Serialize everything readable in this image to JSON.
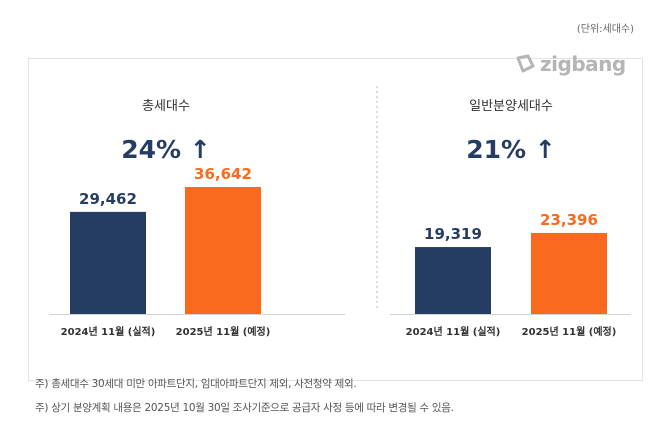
{
  "unit_label": "(단위:세대수)",
  "logo_text": "zigbang",
  "colors": {
    "actual": "#263d63",
    "planned": "#fa6a1e",
    "axis": "#d0d0d0",
    "text_dark": "#263d63"
  },
  "chart_data": [
    {
      "type": "bar",
      "title": "총세대수",
      "change_label": "24% ↑",
      "categories": [
        "2024년 11월 (실적)",
        "2025년 11월 (예정)"
      ],
      "values": [
        29462,
        36642
      ],
      "value_labels": [
        "29,462",
        "36,642"
      ],
      "grid": false
    },
    {
      "type": "bar",
      "title": "일반분양세대수",
      "change_label": "21% ↑",
      "categories": [
        "2024년 11월 (실적)",
        "2025년 11월 (예정)"
      ],
      "values": [
        19319,
        23396
      ],
      "value_labels": [
        "19,319",
        "23,396"
      ],
      "grid": false
    }
  ],
  "footnotes": [
    "주) 총세대수 30세대 미만 아파트단지, 임대아파트단지 제외, 사전청약 제외.",
    "주) 상기 분양계획 내용은 2025년 10월 30일 조사기준으로 공급자 사정 등에 따라 변경될 수 있음."
  ]
}
